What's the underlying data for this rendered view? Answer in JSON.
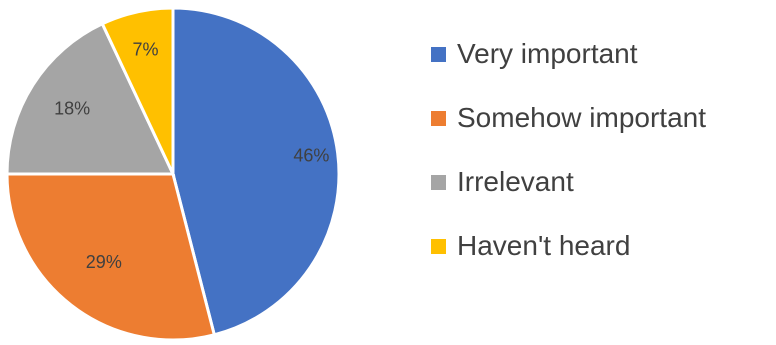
{
  "chart_data": {
    "type": "pie",
    "categories": [
      "Very important",
      "Somehow important",
      "Irrelevant",
      "Haven't heard"
    ],
    "values": [
      46,
      29,
      18,
      7
    ],
    "data_labels": [
      "46%",
      "29%",
      "18%",
      "7%"
    ],
    "colors": [
      "#4472C4",
      "#ED7D31",
      "#A5A5A5",
      "#FFC000"
    ],
    "legend_position": "right"
  }
}
